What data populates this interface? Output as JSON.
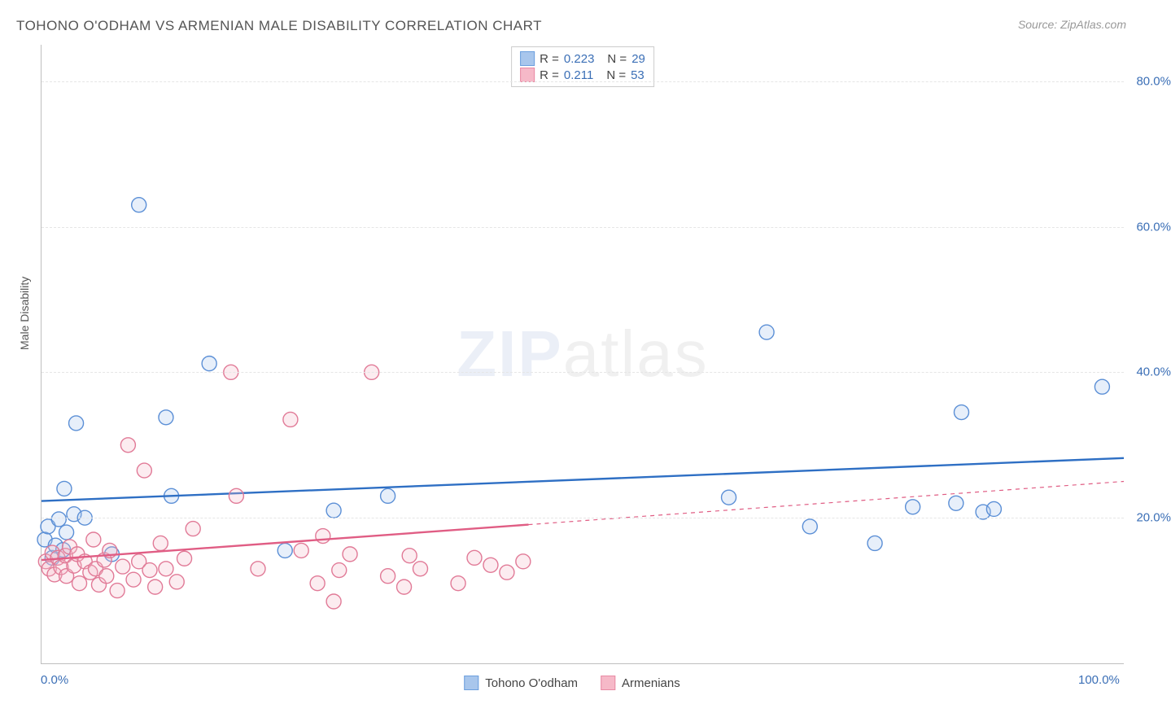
{
  "title": "TOHONO O'ODHAM VS ARMENIAN MALE DISABILITY CORRELATION CHART",
  "source_label": "Source: ZipAtlas.com",
  "yaxis_title": "Male Disability",
  "watermark": {
    "bold": "ZIP",
    "light": "atlas"
  },
  "chart": {
    "type": "scatter",
    "background_color": "#ffffff",
    "grid_color": "#e6e6e6",
    "axis_color": "#bfbfbf",
    "text_color": "#555555",
    "value_color": "#3b6fb6",
    "xlim": [
      0,
      100
    ],
    "ylim": [
      0,
      85
    ],
    "xticks": [
      {
        "v": 0,
        "label": "0.0%"
      },
      {
        "v": 100,
        "label": "100.0%"
      }
    ],
    "yticks": [
      {
        "v": 20,
        "label": "20.0%"
      },
      {
        "v": 40,
        "label": "40.0%"
      },
      {
        "v": 60,
        "label": "60.0%"
      },
      {
        "v": 80,
        "label": "80.0%"
      }
    ],
    "marker_radius": 9,
    "marker_stroke_width": 1.4,
    "marker_fill_opacity": 0.28,
    "trend_width": 2.4,
    "legend_top": [
      {
        "swatch_fill": "#a8c6ec",
        "swatch_stroke": "#6b9fde",
        "r_label": "R =",
        "r_value": "0.223",
        "n_label": "N =",
        "n_value": "29"
      },
      {
        "swatch_fill": "#f6b9c8",
        "swatch_stroke": "#e88aa4",
        "r_label": "R =",
        "r_value": "0.211",
        "n_label": "N =",
        "n_value": "53"
      }
    ],
    "legend_bottom": [
      {
        "swatch_fill": "#a8c6ec",
        "swatch_stroke": "#6b9fde",
        "label": "Tohono O'odham"
      },
      {
        "swatch_fill": "#f6b9c8",
        "swatch_stroke": "#e88aa4",
        "label": "Armenians"
      }
    ],
    "series": [
      {
        "name": "Tohono O'odham",
        "color_stroke": "#5b8fd6",
        "color_fill": "#a8c6ec",
        "trend_color": "#2e6fc4",
        "trend": {
          "x1": 0,
          "y1": 22.3,
          "x2": 100,
          "y2": 28.2,
          "dash_from_x": 100
        },
        "points": [
          {
            "x": 0.3,
            "y": 17.0
          },
          {
            "x": 0.6,
            "y": 18.8
          },
          {
            "x": 1.0,
            "y": 14.5
          },
          {
            "x": 1.3,
            "y": 16.2
          },
          {
            "x": 1.6,
            "y": 19.8
          },
          {
            "x": 2.0,
            "y": 15.6
          },
          {
            "x": 2.1,
            "y": 24.0
          },
          {
            "x": 2.3,
            "y": 18.0
          },
          {
            "x": 3.0,
            "y": 20.5
          },
          {
            "x": 3.2,
            "y": 33.0
          },
          {
            "x": 4.0,
            "y": 20.0
          },
          {
            "x": 6.5,
            "y": 15.0
          },
          {
            "x": 9.0,
            "y": 63.0
          },
          {
            "x": 11.5,
            "y": 33.8
          },
          {
            "x": 12.0,
            "y": 23.0
          },
          {
            "x": 15.5,
            "y": 41.2
          },
          {
            "x": 22.5,
            "y": 15.5
          },
          {
            "x": 27.0,
            "y": 21.0
          },
          {
            "x": 32.0,
            "y": 23.0
          },
          {
            "x": 63.5,
            "y": 22.8
          },
          {
            "x": 67.0,
            "y": 45.5
          },
          {
            "x": 71.0,
            "y": 18.8
          },
          {
            "x": 77.0,
            "y": 16.5
          },
          {
            "x": 80.5,
            "y": 21.5
          },
          {
            "x": 84.5,
            "y": 22.0
          },
          {
            "x": 85.0,
            "y": 34.5
          },
          {
            "x": 87.0,
            "y": 20.8
          },
          {
            "x": 98.0,
            "y": 38.0
          },
          {
            "x": 88.0,
            "y": 21.2
          }
        ]
      },
      {
        "name": "Armenians",
        "color_stroke": "#e17a97",
        "color_fill": "#f6b9c8",
        "trend_color": "#e05d84",
        "trend": {
          "x1": 0,
          "y1": 14.2,
          "x2": 100,
          "y2": 25.0,
          "dash_from_x": 45
        },
        "points": [
          {
            "x": 0.4,
            "y": 14.0
          },
          {
            "x": 0.7,
            "y": 13.0
          },
          {
            "x": 1.0,
            "y": 15.2
          },
          {
            "x": 1.2,
            "y": 12.2
          },
          {
            "x": 1.5,
            "y": 14.5
          },
          {
            "x": 1.8,
            "y": 13.2
          },
          {
            "x": 2.2,
            "y": 14.8
          },
          {
            "x": 2.3,
            "y": 12.0
          },
          {
            "x": 2.6,
            "y": 16.0
          },
          {
            "x": 3.0,
            "y": 13.4
          },
          {
            "x": 3.3,
            "y": 15.0
          },
          {
            "x": 3.5,
            "y": 11.0
          },
          {
            "x": 4.0,
            "y": 14.0
          },
          {
            "x": 4.5,
            "y": 12.5
          },
          {
            "x": 4.8,
            "y": 17.0
          },
          {
            "x": 5.0,
            "y": 13.0
          },
          {
            "x": 5.3,
            "y": 10.8
          },
          {
            "x": 5.8,
            "y": 14.2
          },
          {
            "x": 6.0,
            "y": 12.0
          },
          {
            "x": 6.3,
            "y": 15.5
          },
          {
            "x": 7.0,
            "y": 10.0
          },
          {
            "x": 7.5,
            "y": 13.3
          },
          {
            "x": 8.0,
            "y": 30.0
          },
          {
            "x": 8.5,
            "y": 11.5
          },
          {
            "x": 9.0,
            "y": 14.0
          },
          {
            "x": 9.5,
            "y": 26.5
          },
          {
            "x": 10.0,
            "y": 12.8
          },
          {
            "x": 10.5,
            "y": 10.5
          },
          {
            "x": 11.0,
            "y": 16.5
          },
          {
            "x": 11.5,
            "y": 13.0
          },
          {
            "x": 12.5,
            "y": 11.2
          },
          {
            "x": 13.2,
            "y": 14.4
          },
          {
            "x": 14.0,
            "y": 18.5
          },
          {
            "x": 17.5,
            "y": 40.0
          },
          {
            "x": 18.0,
            "y": 23.0
          },
          {
            "x": 20.0,
            "y": 13.0
          },
          {
            "x": 23.0,
            "y": 33.5
          },
          {
            "x": 24.0,
            "y": 15.5
          },
          {
            "x": 25.5,
            "y": 11.0
          },
          {
            "x": 26.0,
            "y": 17.5
          },
          {
            "x": 27.0,
            "y": 8.5
          },
          {
            "x": 27.5,
            "y": 12.8
          },
          {
            "x": 28.5,
            "y": 15.0
          },
          {
            "x": 30.5,
            "y": 40.0
          },
          {
            "x": 32.0,
            "y": 12.0
          },
          {
            "x": 33.5,
            "y": 10.5
          },
          {
            "x": 34.0,
            "y": 14.8
          },
          {
            "x": 35.0,
            "y": 13.0
          },
          {
            "x": 38.5,
            "y": 11.0
          },
          {
            "x": 40.0,
            "y": 14.5
          },
          {
            "x": 41.5,
            "y": 13.5
          },
          {
            "x": 43.0,
            "y": 12.5
          },
          {
            "x": 44.5,
            "y": 14.0
          }
        ]
      }
    ]
  }
}
